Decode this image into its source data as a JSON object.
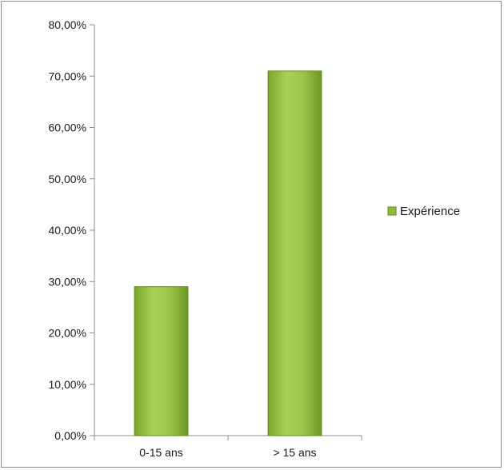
{
  "chart_data": {
    "type": "bar",
    "title": "",
    "xlabel": "",
    "ylabel": "",
    "categories": [
      "0-15 ans",
      "> 15 ans"
    ],
    "series": [
      {
        "name": "Expérience",
        "values": [
          0.29,
          0.71
        ]
      }
    ],
    "ylim": [
      0,
      0.8
    ],
    "yticks": [
      0,
      0.1,
      0.2,
      0.3,
      0.4,
      0.5,
      0.6,
      0.7,
      0.8
    ],
    "ytick_labels": [
      "0,00%",
      "10,00%",
      "20,00%",
      "30,00%",
      "40,00%",
      "50,00%",
      "60,00%",
      "70,00%",
      "80,00%"
    ],
    "grid": false,
    "legend_position": "right",
    "colors": {
      "bar_light": "#b6d86a",
      "bar_mid": "#8dbb3c",
      "bar_dark": "#5f8a1e",
      "axis": "#8c8c8c"
    }
  }
}
